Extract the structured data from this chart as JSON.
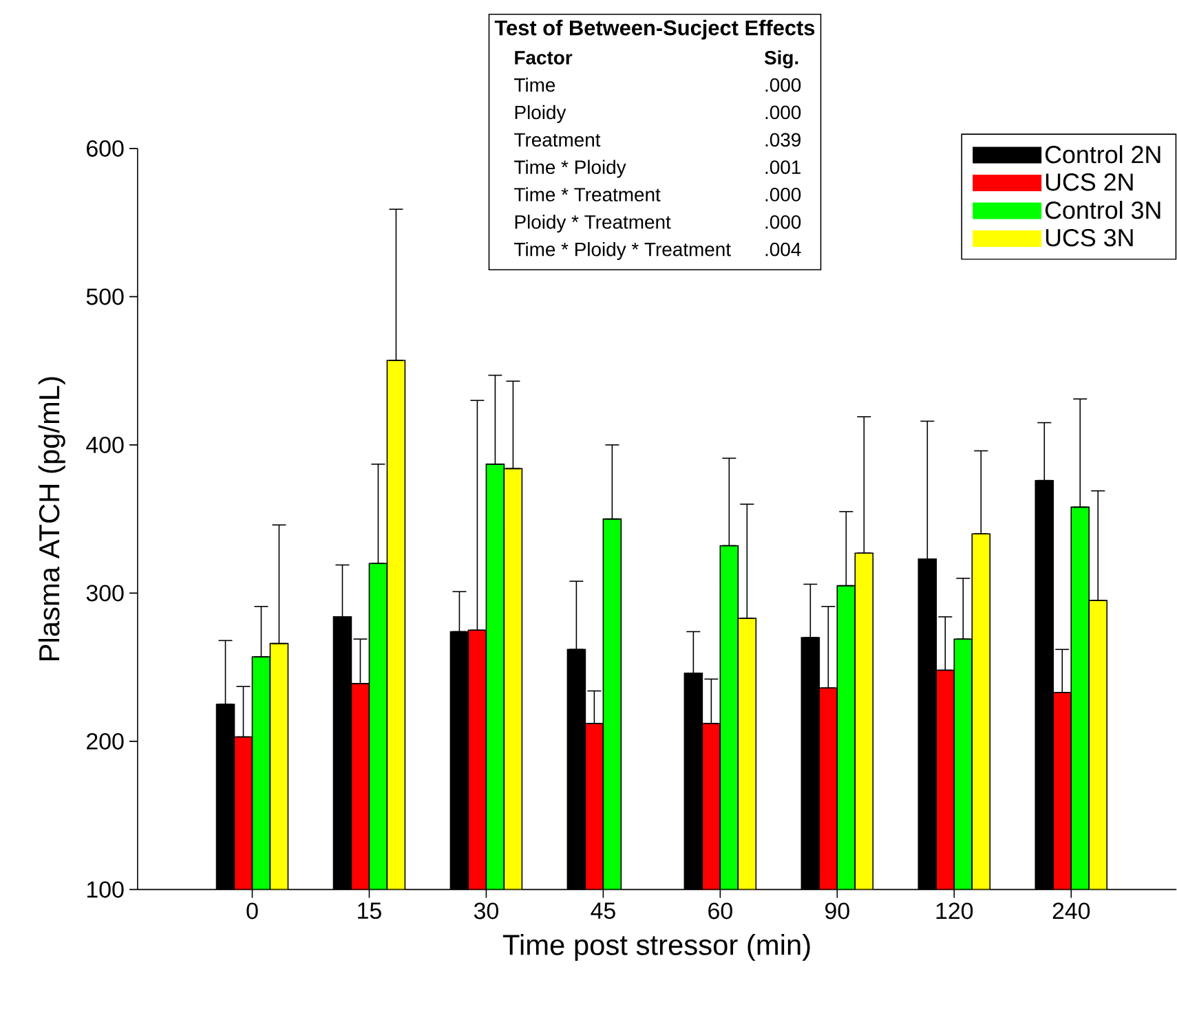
{
  "chart_data": {
    "type": "bar",
    "xlabel": "Time post stressor (min)",
    "ylabel": "Plasma ATCH (pg/mL)",
    "categories": [
      "0",
      "15",
      "30",
      "45",
      "60",
      "90",
      "120",
      "240"
    ],
    "series": [
      {
        "name": "Control 2N",
        "color": "#000000",
        "values": [
          225,
          284,
          274,
          262,
          246,
          270,
          323,
          376
        ],
        "errors": [
          [
            225,
            268
          ],
          [
            284,
            319
          ],
          [
            274,
            301
          ],
          [
            262,
            308
          ],
          [
            246,
            274
          ],
          [
            270,
            306
          ],
          [
            323,
            416
          ],
          [
            376,
            415
          ]
        ]
      },
      {
        "name": "UCS 2N",
        "color": "#ff0000",
        "values": [
          203,
          239,
          275,
          212,
          212,
          236,
          248,
          233
        ],
        "errors": [
          [
            203,
            237
          ],
          [
            239,
            269
          ],
          [
            275,
            430
          ],
          [
            212,
            234
          ],
          [
            212,
            242
          ],
          [
            236,
            291
          ],
          [
            248,
            284
          ],
          [
            233,
            262
          ]
        ]
      },
      {
        "name": "Control 3N",
        "color": "#00ff00",
        "values": [
          257,
          320,
          387,
          350,
          332,
          305,
          269,
          358
        ],
        "errors": [
          [
            257,
            291
          ],
          [
            320,
            387
          ],
          [
            387,
            447
          ],
          [
            350,
            400
          ],
          [
            332,
            391
          ],
          [
            305,
            355
          ],
          [
            269,
            310
          ],
          [
            358,
            431
          ]
        ]
      },
      {
        "name": "UCS 3N",
        "color": "#ffff00",
        "values": [
          266,
          457,
          384,
          null,
          283,
          327,
          340,
          295
        ],
        "errors": [
          [
            266,
            346
          ],
          [
            457,
            559
          ],
          [
            384,
            443
          ],
          null,
          [
            283,
            360
          ],
          [
            327,
            419
          ],
          [
            340,
            396
          ],
          [
            295,
            369
          ]
        ]
      }
    ],
    "ylim": [
      100,
      600
    ],
    "yticks": [
      100,
      200,
      300,
      400,
      500,
      600
    ],
    "grid": false,
    "legend": "top right",
    "annotations": [
      "Test of Between-Sucject Effects",
      "Factor",
      "Sig.",
      "Time",
      ".000",
      "Ploidy",
      ".000",
      "Treatment",
      ".039",
      "Time * Ploidy",
      ".001",
      "Time * Treatment",
      ".000",
      "Ploidy * Treatment",
      ".000",
      "Time * Ploidy * Treatment",
      ".004"
    ]
  }
}
